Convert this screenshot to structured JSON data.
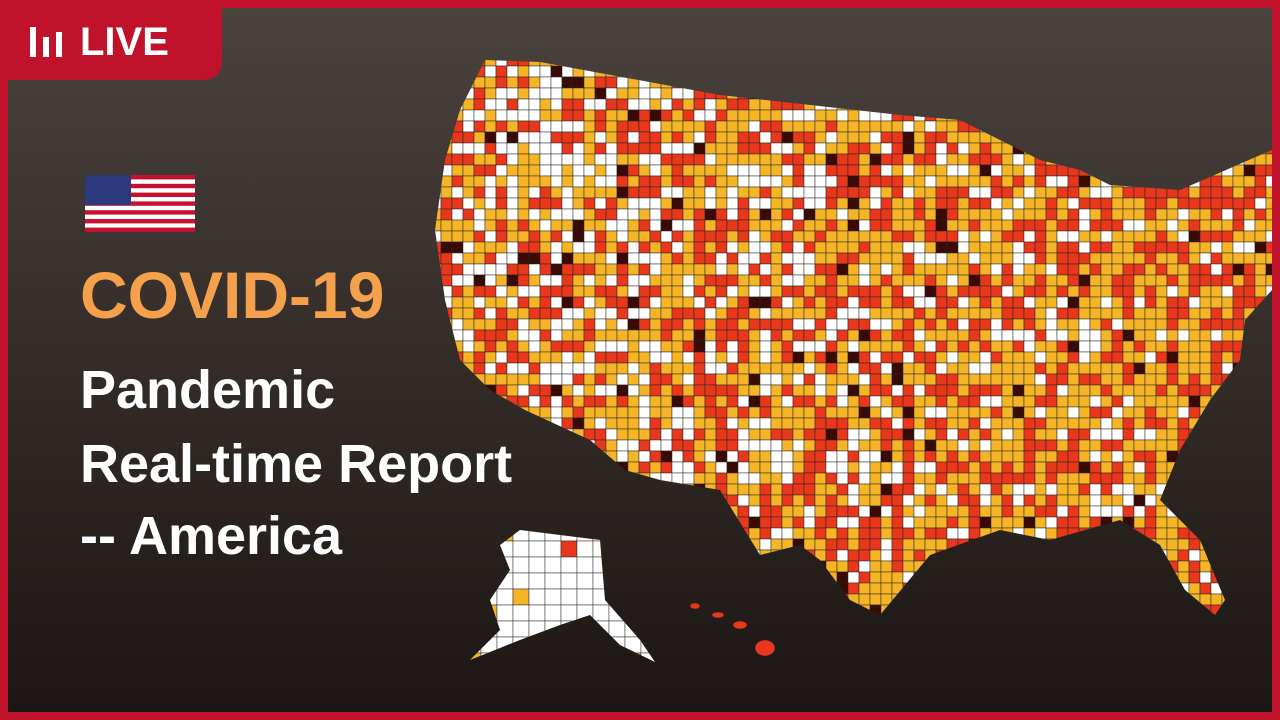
{
  "badge": {
    "label": "LIVE"
  },
  "headline": {
    "title": "COVID-19",
    "lines": [
      "Pandemic",
      "Real-time Report",
      "-- America"
    ]
  }
}
